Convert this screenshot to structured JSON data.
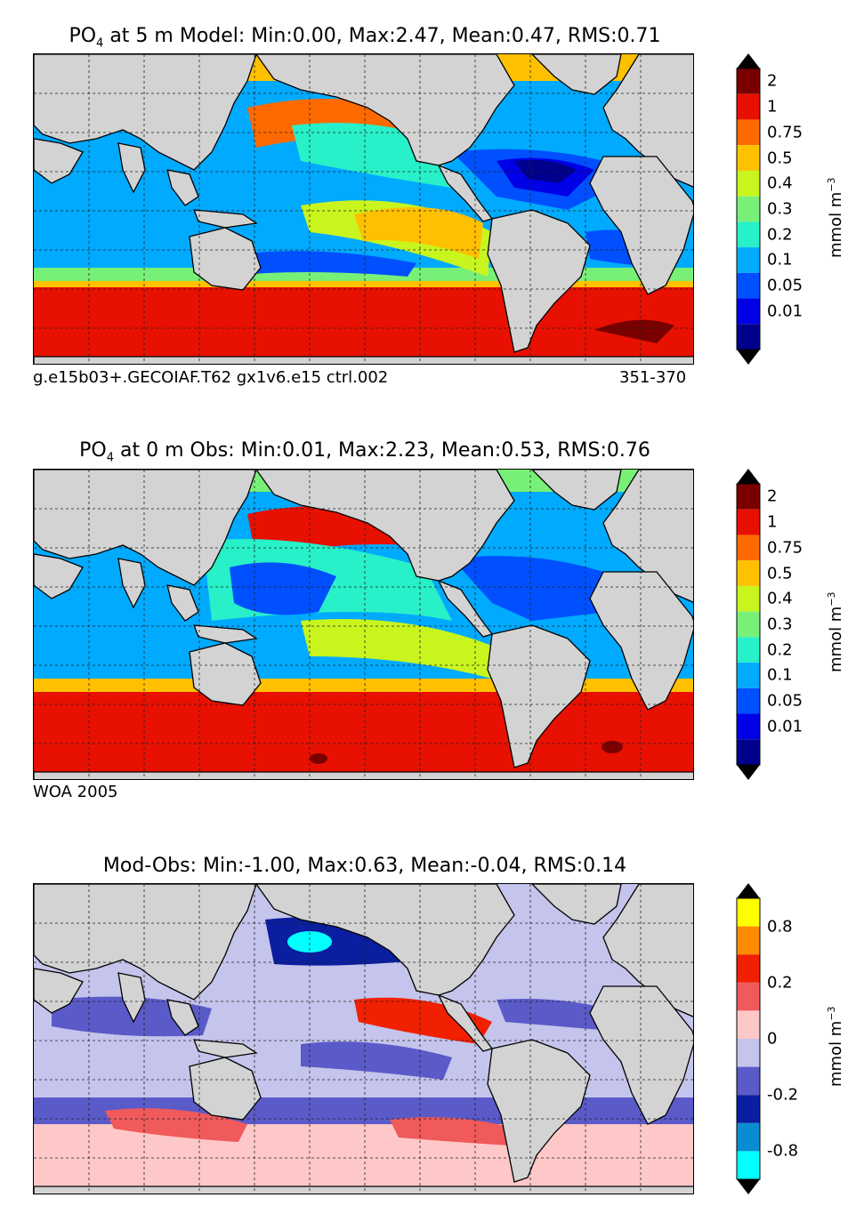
{
  "panels": [
    {
      "title_var": "PO",
      "title_sub": "4",
      "title_rest": " at 5 m Model: Min:0.00, Max:2.47, Mean:0.47, RMS:0.71",
      "footer_left": "g.e15b03+.GECOIAF.T62 gx1v6.e15 ctrl.002",
      "footer_right": "351-370",
      "colorbar_ticks": [
        "2",
        "1",
        "0.75",
        "0.5",
        "0.4",
        "0.3",
        "0.2",
        "0.1",
        "0.05",
        "0.01"
      ],
      "colorbar_unit": "mmol m",
      "colorbar_unit_sup": "−3",
      "colors": [
        "#7a0000",
        "#e81000",
        "#ff6a00",
        "#ffc000",
        "#c8f51e",
        "#78f078",
        "#28f0c8",
        "#00aaff",
        "#0050ff",
        "#0000e6",
        "#00008c"
      ]
    },
    {
      "title_var": "PO",
      "title_sub": "4",
      "title_rest": " at 0 m Obs: Min:0.01, Max:2.23, Mean:0.53, RMS:0.76",
      "footer_left": "WOA 2005",
      "footer_right": "",
      "colorbar_ticks": [
        "2",
        "1",
        "0.75",
        "0.5",
        "0.4",
        "0.3",
        "0.2",
        "0.1",
        "0.05",
        "0.01"
      ],
      "colorbar_unit": "mmol m",
      "colorbar_unit_sup": "−3",
      "colors": [
        "#7a0000",
        "#e81000",
        "#ff6a00",
        "#ffc000",
        "#c8f51e",
        "#78f078",
        "#28f0c8",
        "#00aaff",
        "#0050ff",
        "#0000e6",
        "#00008c"
      ]
    },
    {
      "title_var": "",
      "title_sub": "",
      "title_rest": "Mod-Obs: Min:-1.00, Max:0.63, Mean:-0.04, RMS:0.14",
      "footer_left": "",
      "footer_right": "",
      "colorbar_ticks": [
        "0.8",
        "0.2",
        "0",
        "-0.2",
        "-0.8"
      ],
      "colorbar_unit": "mmol m",
      "colorbar_unit_sup": "−3",
      "colors": [
        "#ffff00",
        "#ff8c00",
        "#f02000",
        "#f05a5a",
        "#ffc8c8",
        "#c4c4ec",
        "#5a5ac8",
        "#0a1ea0",
        "#0a8cd2",
        "#00ffff"
      ]
    }
  ]
}
